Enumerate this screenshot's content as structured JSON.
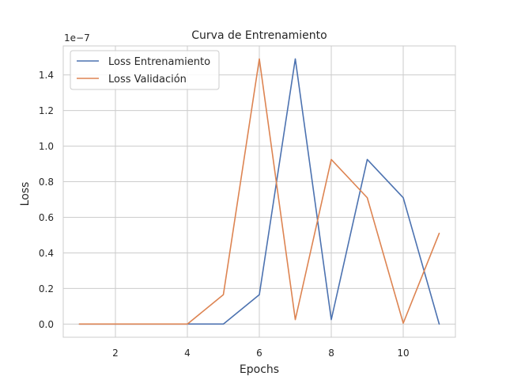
{
  "chart_data": {
    "type": "line",
    "title": "Curva de Entrenamiento",
    "xlabel": "Epochs",
    "ylabel": "Loss",
    "scale_label": "1e−7",
    "xlim": [
      0.55,
      11.45
    ],
    "ylim": [
      -0.074,
      1.563
    ],
    "x_ticks": [
      2,
      4,
      6,
      8,
      10
    ],
    "x_tick_labels": [
      "2",
      "4",
      "6",
      "8",
      "10"
    ],
    "y_ticks": [
      0.0,
      0.2,
      0.4,
      0.6,
      0.8,
      1.0,
      1.2,
      1.4
    ],
    "y_tick_labels": [
      "0.0",
      "0.2",
      "0.4",
      "0.6",
      "0.8",
      "1.0",
      "1.2",
      "1.4"
    ],
    "grid": true,
    "legend_position": "top-left",
    "x": [
      1,
      2,
      3,
      4,
      5,
      6,
      7,
      8,
      9,
      10,
      11
    ],
    "series": [
      {
        "name": "Loss Entrenamiento",
        "color": "#4c72b0",
        "values": [
          0.0,
          0.0,
          0.0,
          0.0,
          0.0,
          0.165,
          1.49,
          0.025,
          0.925,
          0.71,
          0.0
        ]
      },
      {
        "name": "Loss Validación",
        "color": "#dd8452",
        "values": [
          0.0,
          0.0,
          0.0,
          0.0,
          0.165,
          1.49,
          0.025,
          0.925,
          0.71,
          0.005,
          0.51
        ]
      }
    ]
  }
}
